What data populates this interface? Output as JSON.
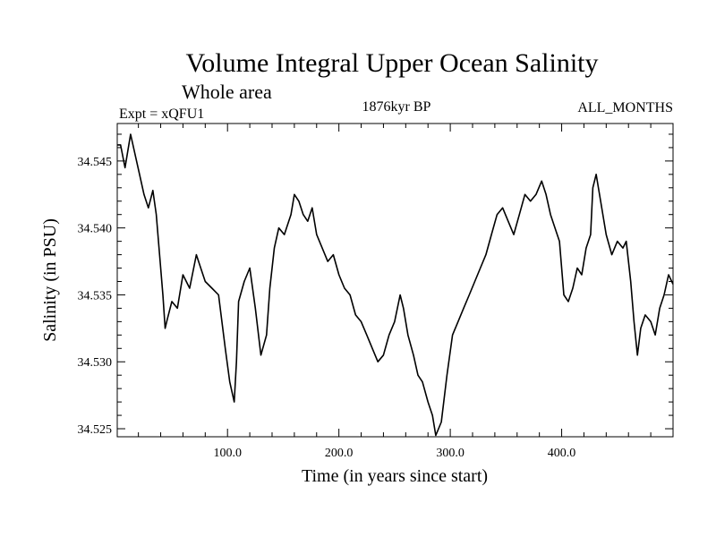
{
  "chart_data": {
    "type": "line",
    "title": "Volume Integral Upper Ocean Salinity",
    "subtitle": "Whole area",
    "experiment": "Expt = xQFU1",
    "period": "1876kyr BP",
    "months": "ALL_MONTHS",
    "xlabel": "Time (in years since start)",
    "ylabel": "Salinity (in PSU)",
    "xlim": [
      1,
      500
    ],
    "ylim": [
      34.5244,
      34.5478
    ],
    "x_ticks": [
      100,
      200,
      300,
      400
    ],
    "x_tick_labels": [
      "100.0",
      "200.0",
      "300.0",
      "400.0"
    ],
    "y_ticks": [
      34.525,
      34.53,
      34.535,
      34.54,
      34.545
    ],
    "y_tick_labels": [
      "34.525",
      "34.530",
      "34.535",
      "34.540",
      "34.545"
    ],
    "grid": false,
    "series": [
      {
        "name": "salinity",
        "x": [
          1,
          4,
          8,
          13,
          17,
          21,
          25,
          29,
          33,
          36,
          39,
          42,
          44,
          46,
          50,
          55,
          60,
          66,
          72,
          76,
          80,
          86,
          92,
          98,
          102,
          106,
          108,
          110,
          115,
          120,
          125,
          130,
          135,
          138,
          142,
          146,
          151,
          157,
          160,
          164,
          168,
          172,
          176,
          180,
          185,
          190,
          195,
          200,
          205,
          210,
          215,
          220,
          225,
          230,
          235,
          240,
          245,
          250,
          255,
          258,
          262,
          267,
          271,
          275,
          280,
          284,
          287,
          292,
          297,
          302,
          307,
          312,
          317,
          322,
          327,
          332,
          337,
          342,
          347,
          352,
          357,
          362,
          367,
          372,
          377,
          382,
          386,
          390,
          394,
          398,
          402,
          406,
          410,
          414,
          418,
          422,
          426,
          428,
          431,
          435,
          440,
          445,
          450,
          455,
          458,
          462,
          465,
          468,
          471,
          475,
          480,
          484,
          488,
          492,
          496,
          500
        ],
        "y": [
          34.5462,
          34.5462,
          34.5445,
          34.547,
          34.5455,
          34.544,
          34.5425,
          34.5415,
          34.5428,
          34.541,
          34.538,
          34.535,
          34.5325,
          34.5332,
          34.5345,
          34.534,
          34.5365,
          34.5355,
          34.538,
          34.537,
          34.536,
          34.5355,
          34.535,
          34.531,
          34.5285,
          34.527,
          34.53,
          34.5345,
          34.536,
          34.537,
          34.534,
          34.5305,
          34.532,
          34.5355,
          34.5385,
          34.54,
          34.5395,
          34.541,
          34.5425,
          34.542,
          34.541,
          34.5405,
          34.5415,
          34.5395,
          34.5385,
          34.5375,
          34.538,
          34.5365,
          34.5355,
          34.535,
          34.5335,
          34.533,
          34.532,
          34.531,
          34.53,
          34.5305,
          34.532,
          34.533,
          34.535,
          34.534,
          34.532,
          34.5305,
          34.529,
          34.5285,
          34.527,
          34.526,
          34.5245,
          34.5255,
          34.529,
          34.532,
          34.533,
          34.534,
          34.535,
          34.536,
          34.537,
          34.538,
          34.5395,
          34.541,
          34.5415,
          34.5405,
          34.5395,
          34.541,
          34.5425,
          34.542,
          34.5425,
          34.5435,
          34.5425,
          34.541,
          34.54,
          34.539,
          34.535,
          34.5345,
          34.5355,
          34.537,
          34.5365,
          34.5385,
          34.5395,
          34.543,
          34.544,
          34.542,
          34.5395,
          34.538,
          34.539,
          34.5385,
          34.539,
          34.536,
          34.533,
          34.5305,
          34.5325,
          34.5335,
          34.533,
          34.532,
          34.534,
          34.535,
          34.5365,
          34.5358
        ]
      }
    ]
  }
}
